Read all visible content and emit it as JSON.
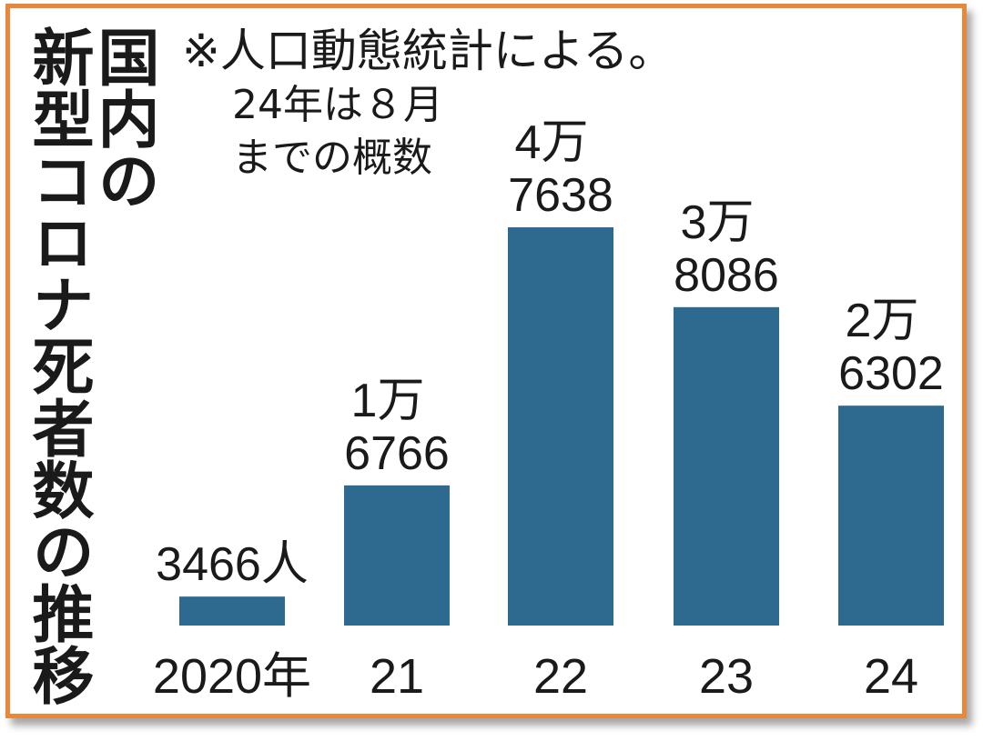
{
  "title": {
    "line1": "国内の",
    "line2": "新型コロナ死者数の推移"
  },
  "note": {
    "line1": "※人口動態統計による。",
    "line2": "24年は８月",
    "line3": "までの概数"
  },
  "colors": {
    "bar": "#2e6a8f",
    "frame": "#e8883a",
    "text": "#1a1a1a"
  },
  "chart_data": {
    "type": "bar",
    "categories": [
      "2020年",
      "21",
      "22",
      "23",
      "24"
    ],
    "values": [
      3466,
      16766,
      47638,
      38086,
      26302
    ],
    "data_labels": [
      [
        "3466人"
      ],
      [
        "1万",
        "6766"
      ],
      [
        "4万",
        "7638"
      ],
      [
        "3万",
        "8086"
      ],
      [
        "2万",
        "6302"
      ]
    ],
    "title": "国内の新型コロナ死者数の推移",
    "xlabel": "",
    "ylabel": "",
    "ylim": [
      0,
      47638
    ],
    "grid": false,
    "legend": "none"
  }
}
